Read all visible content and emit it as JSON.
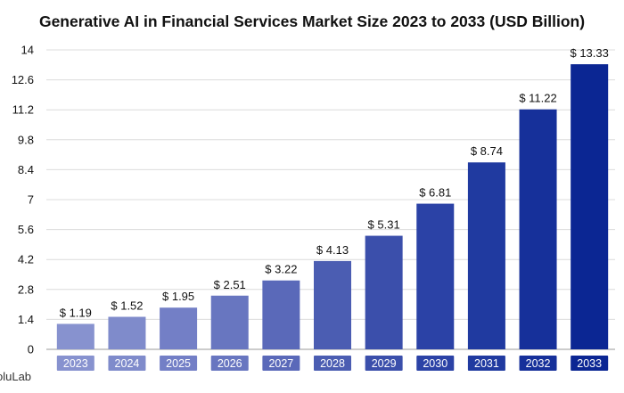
{
  "brand": {
    "text": "oluLab"
  },
  "colors": {
    "bars": [
      "#8792cf",
      "#7f8bcb",
      "#737fc6",
      "#6876c0",
      "#5a69b9",
      "#4b5db2",
      "#3b4fab",
      "#2b42a6",
      "#203aa0",
      "#16309a",
      "#0b2693"
    ],
    "grid": "#dcdcdc",
    "axis": "#999999",
    "text": "#111111"
  },
  "chart_data": {
    "type": "bar",
    "title": "Generative AI in Financial Services Market Size 2023 to 2033 (USD Billion)",
    "categories": [
      "2023",
      "2024",
      "2025",
      "2026",
      "2027",
      "2028",
      "2029",
      "2030",
      "2031",
      "2032",
      "2033"
    ],
    "values": [
      1.19,
      1.52,
      1.95,
      2.51,
      3.22,
      4.13,
      5.31,
      6.81,
      8.74,
      11.22,
      13.33
    ],
    "data_labels": [
      "$ 1.19",
      "$ 1.52",
      "$ 1.95",
      "$ 2.51",
      "$ 3.22",
      "$ 4.13",
      "$ 5.31",
      "$ 6.81",
      "$ 8.74",
      "$ 11.22",
      "$ 13.33"
    ],
    "yticks": [
      "0",
      "1.4",
      "2.8",
      "4.2",
      "5.6",
      "7",
      "8.4",
      "9.8",
      "11.2",
      "12.6",
      "14"
    ],
    "ylim": [
      0,
      14
    ],
    "grid": true,
    "xlabel": "",
    "ylabel": ""
  }
}
